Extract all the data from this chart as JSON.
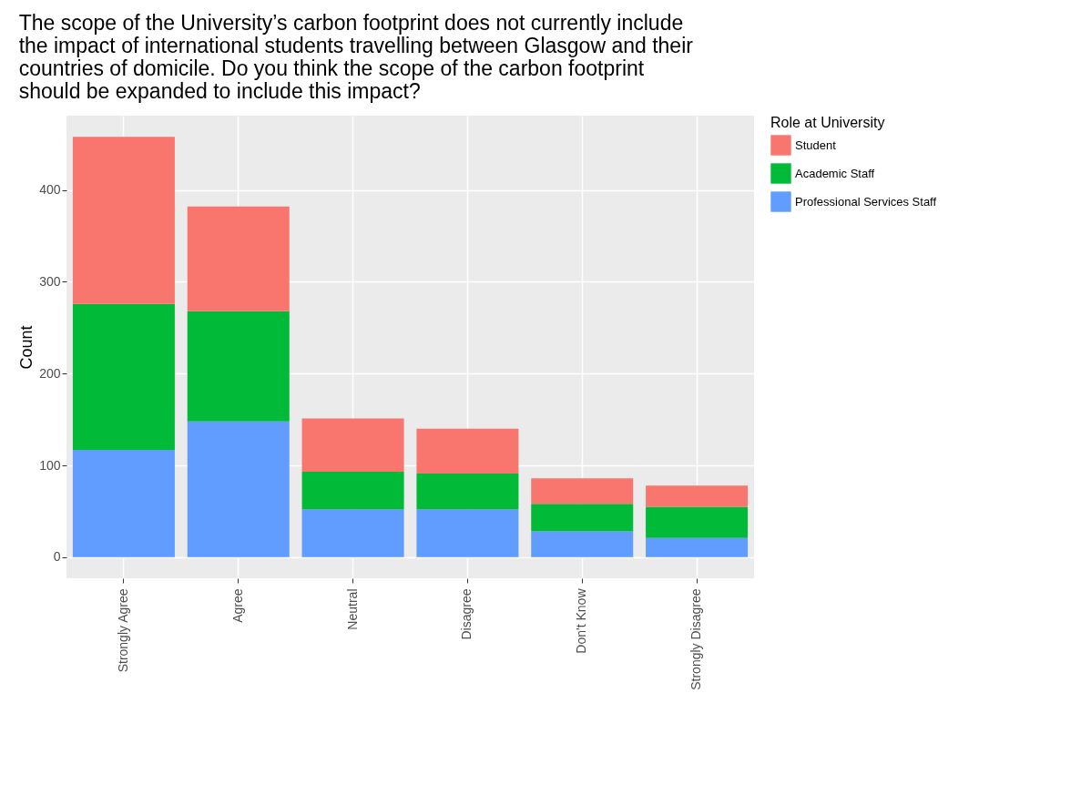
{
  "chart_data": {
    "type": "bar",
    "title": [
      "The scope of the University’s carbon footprint does not currently include",
      "the impact of international students travelling between Glasgow and their",
      "countries of domicile. Do you think the scope of the carbon footprint",
      "should be expanded to include this impact?"
    ],
    "ylabel": "Count",
    "legend_title": "Role at University",
    "categories": [
      "Strongly Agree",
      "Agree",
      "Neutral",
      "Disagree",
      "Don't Know",
      "Strongly Disagree"
    ],
    "stacked": true,
    "series": [
      {
        "name": "Professional Services Staff",
        "color": "#619cff",
        "values": [
          117,
          148,
          52,
          52,
          28,
          21
        ]
      },
      {
        "name": "Academic Staff",
        "color": "#00ba38",
        "values": [
          159,
          120,
          41,
          39,
          30,
          34
        ]
      },
      {
        "name": "Student",
        "color": "#f8766d",
        "values": [
          182,
          114,
          58,
          49,
          28,
          23
        ]
      }
    ],
    "ylim": [
      -23,
      481
    ],
    "yticks": [
      0,
      100,
      200,
      300,
      400
    ],
    "grid": true,
    "legend": "right"
  }
}
